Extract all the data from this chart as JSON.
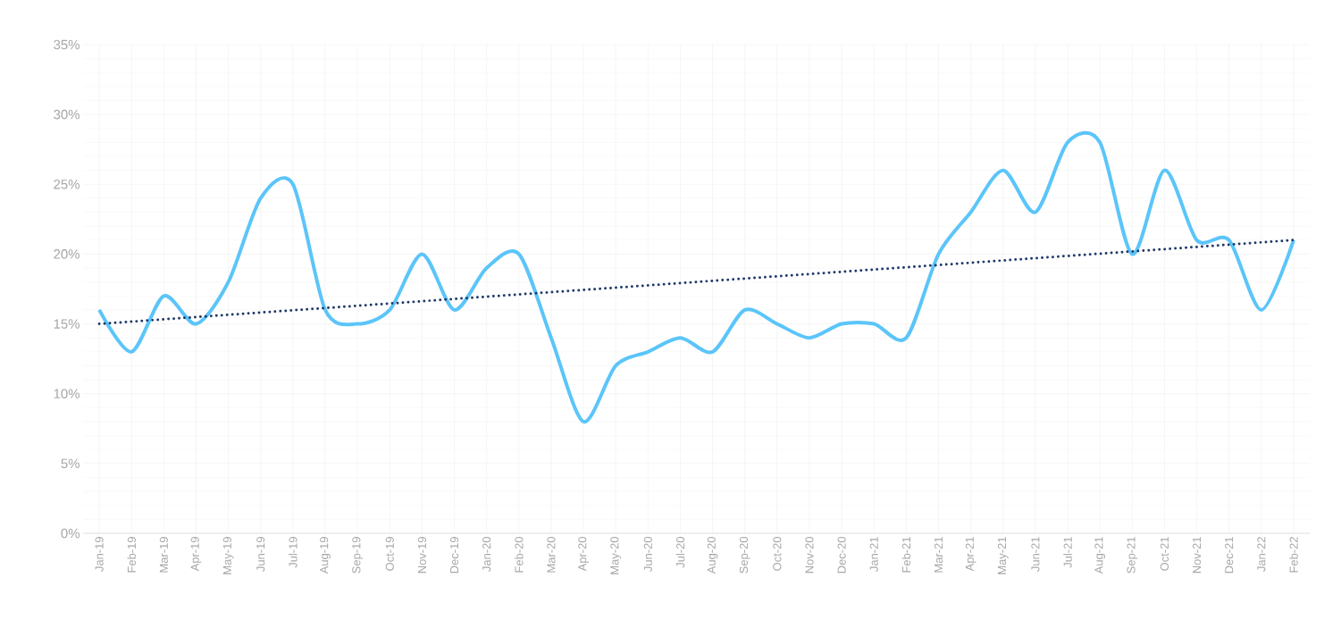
{
  "chart_data": {
    "type": "line",
    "categories": [
      "Jan-19",
      "Feb-19",
      "Mar-19",
      "Apr-19",
      "May-19",
      "Jun-19",
      "Jul-19",
      "Aug-19",
      "Sep-19",
      "Oct-19",
      "Nov-19",
      "Dec-19",
      "Jan-20",
      "Feb-20",
      "Mar-20",
      "Apr-20",
      "May-20",
      "Jun-20",
      "Jul-20",
      "Aug-20",
      "Sep-20",
      "Oct-20",
      "Nov-20",
      "Dec-20",
      "Jan-21",
      "Feb-21",
      "Mar-21",
      "Apr-21",
      "May-21",
      "Jun-21",
      "Jul-21",
      "Aug-21",
      "Sep-21",
      "Oct-21",
      "Nov-21",
      "Dec-21",
      "Jan-22",
      "Feb-22"
    ],
    "series": [
      {
        "color": "#5bc5f9",
        "line_style": "solid",
        "values": [
          16,
          13,
          17,
          15,
          18,
          24,
          25,
          16,
          15,
          16,
          20,
          16,
          19,
          20,
          14,
          8,
          12,
          13,
          14,
          13,
          16,
          15,
          14,
          15,
          15,
          14,
          20,
          23,
          26,
          23,
          28,
          28,
          20,
          26,
          21,
          21,
          16,
          21
        ]
      },
      {
        "type": "line",
        "color": "#1f3a68",
        "line_style": "dotted",
        "x": [
          "Jan-19",
          "Feb-22"
        ],
        "values": [
          15,
          21
        ]
      }
    ],
    "ylim": [
      0,
      35
    ],
    "yticks": [
      {
        "value": 0,
        "label": "0%"
      },
      {
        "value": 5,
        "label": "5%"
      },
      {
        "value": 10,
        "label": "10%"
      },
      {
        "value": 15,
        "label": "15%"
      },
      {
        "value": 20,
        "label": "20%"
      },
      {
        "value": 25,
        "label": "25%"
      },
      {
        "value": 30,
        "label": "30%"
      },
      {
        "value": 35,
        "label": "35%"
      }
    ],
    "grid": true,
    "marker": "none"
  }
}
